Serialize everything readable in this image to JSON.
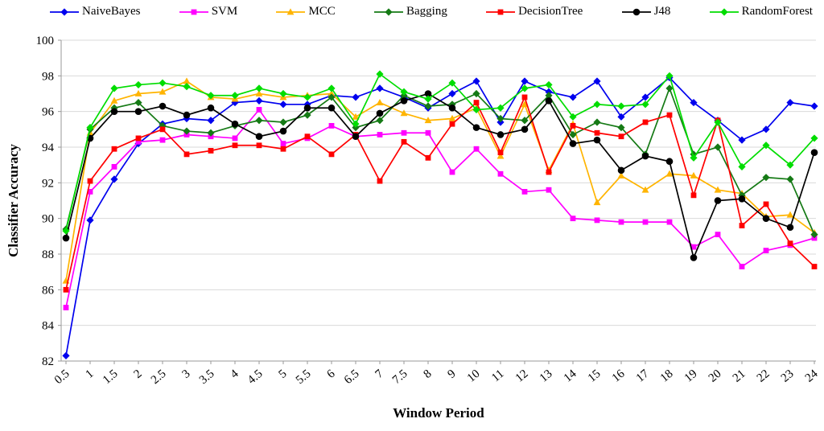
{
  "chart_data": {
    "type": "line",
    "title": "",
    "xlabel": "Window Period",
    "ylabel": "Classifier Accuracy",
    "ylim": [
      82,
      100
    ],
    "ytick_step": 2,
    "grid": true,
    "legend_position": "top",
    "grid_color": "#d9d9d9",
    "axis_color": "#9a9a9a",
    "categories": [
      "0.5",
      "1",
      "1.5",
      "2",
      "2.5",
      "3",
      "3.5",
      "4",
      "4.5",
      "5",
      "5.5",
      "6",
      "6.5",
      "7",
      "7.5",
      "8",
      "9",
      "10",
      "11",
      "12",
      "13",
      "14",
      "15",
      "16",
      "17",
      "18",
      "19",
      "20",
      "21",
      "22",
      "23",
      "24"
    ],
    "series": [
      {
        "name": "NaiveBayes",
        "color": "#0000ee",
        "marker": "diamond",
        "values": [
          82.3,
          89.9,
          92.2,
          94.2,
          95.3,
          95.6,
          95.5,
          96.5,
          96.6,
          96.4,
          96.4,
          96.9,
          96.8,
          97.3,
          96.8,
          96.2,
          97.0,
          97.7,
          95.4,
          97.7,
          97.1,
          96.8,
          97.7,
          95.7,
          96.8,
          97.9,
          96.5,
          95.5,
          94.4,
          95.0,
          96.5,
          96.3
        ]
      },
      {
        "name": "SVM",
        "color": "#ff00ff",
        "marker": "square",
        "values": [
          85.0,
          91.5,
          92.9,
          94.3,
          94.4,
          94.7,
          94.6,
          94.5,
          96.1,
          94.2,
          94.5,
          95.2,
          94.6,
          94.7,
          94.8,
          94.8,
          92.6,
          93.9,
          92.5,
          91.5,
          91.6,
          90.0,
          89.9,
          89.8,
          89.8,
          89.8,
          88.4,
          89.1,
          87.3,
          88.2,
          88.5,
          88.9
        ]
      },
      {
        "name": "MCC",
        "color": "#ffb400",
        "marker": "triangle",
        "values": [
          86.5,
          94.8,
          96.6,
          97.0,
          97.1,
          97.7,
          96.8,
          96.7,
          97.0,
          96.8,
          96.9,
          97.0,
          95.7,
          96.5,
          95.9,
          95.5,
          95.6,
          96.2,
          93.5,
          96.4,
          92.7,
          95.3,
          90.9,
          92.4,
          91.6,
          92.5,
          92.4,
          91.6,
          91.4,
          90.1,
          90.2,
          89.2
        ]
      },
      {
        "name": "Bagging",
        "color": "#157a15",
        "marker": "diamond",
        "values": [
          89.4,
          95.0,
          96.2,
          96.5,
          95.2,
          94.9,
          94.8,
          95.2,
          95.5,
          95.4,
          95.8,
          96.8,
          95.1,
          95.5,
          96.9,
          96.3,
          96.4,
          97.0,
          95.6,
          95.5,
          96.9,
          94.7,
          95.4,
          95.1,
          93.6,
          97.3,
          93.6,
          94.0,
          91.3,
          92.3,
          92.2,
          89.1
        ]
      },
      {
        "name": "DecisionTree",
        "color": "#ff0000",
        "marker": "square",
        "values": [
          86.0,
          92.1,
          93.9,
          94.5,
          95.0,
          93.6,
          93.8,
          94.1,
          94.1,
          93.9,
          94.6,
          93.6,
          94.7,
          92.1,
          94.3,
          93.4,
          95.3,
          96.5,
          93.7,
          96.8,
          92.6,
          95.2,
          94.8,
          94.6,
          95.4,
          95.8,
          91.3,
          95.5,
          89.6,
          90.8,
          88.6,
          87.3
        ]
      },
      {
        "name": "J48",
        "color": "#000000",
        "marker": "circle",
        "values": [
          88.9,
          94.5,
          96.0,
          96.0,
          96.3,
          95.8,
          96.2,
          95.3,
          94.6,
          94.9,
          96.2,
          96.2,
          94.6,
          95.9,
          96.6,
          97.0,
          96.2,
          95.1,
          94.7,
          95.0,
          96.6,
          94.2,
          94.4,
          92.7,
          93.5,
          93.2,
          87.8,
          91.0,
          91.1,
          90.0,
          89.5,
          93.7
        ]
      },
      {
        "name": "RandomForest",
        "color": "#00dd00",
        "marker": "diamond",
        "values": [
          89.3,
          95.1,
          97.3,
          97.5,
          97.6,
          97.4,
          96.9,
          96.9,
          97.3,
          97.0,
          96.8,
          97.3,
          95.3,
          98.1,
          97.1,
          96.7,
          97.6,
          96.1,
          96.2,
          97.3,
          97.5,
          95.7,
          96.4,
          96.3,
          96.4,
          98.0,
          93.4,
          95.4,
          92.9,
          94.1,
          93.0,
          94.5
        ]
      }
    ]
  }
}
